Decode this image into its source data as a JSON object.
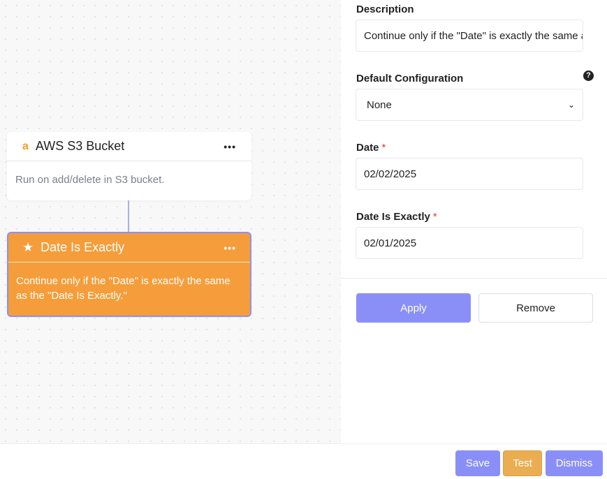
{
  "canvas": {
    "nodes": [
      {
        "title": "AWS S3 Bucket",
        "icon": "amazon-icon",
        "icon_glyph": "a",
        "menu": "•••",
        "description": "Run on add/delete in S3 bucket."
      },
      {
        "title": "Date Is Exactly",
        "icon": "star-icon",
        "icon_glyph": "★",
        "menu": "•••",
        "description": "Continue only if the \"Date\" is exactly the same as the \"Date Is Exactly.\""
      }
    ]
  },
  "panel": {
    "description": {
      "label": "Description",
      "value": "Continue only if the \"Date\" is exactly the same as the \"Date Is Exactly.\""
    },
    "default_config": {
      "label": "Default Configuration",
      "help": "?",
      "value": "None",
      "chevron": "⌄"
    },
    "date": {
      "label": "Date",
      "required": "*",
      "value": "02/02/2025"
    },
    "date_exactly": {
      "label": "Date Is Exactly",
      "required": "*",
      "value": "02/01/2025"
    },
    "apply": "Apply",
    "remove": "Remove"
  },
  "footer": {
    "save": "Save",
    "test": "Test",
    "dismiss": "Dismiss"
  },
  "colors": {
    "accent": "#8a8ff8",
    "node": "#f59d3a",
    "test": "#eaad52"
  }
}
